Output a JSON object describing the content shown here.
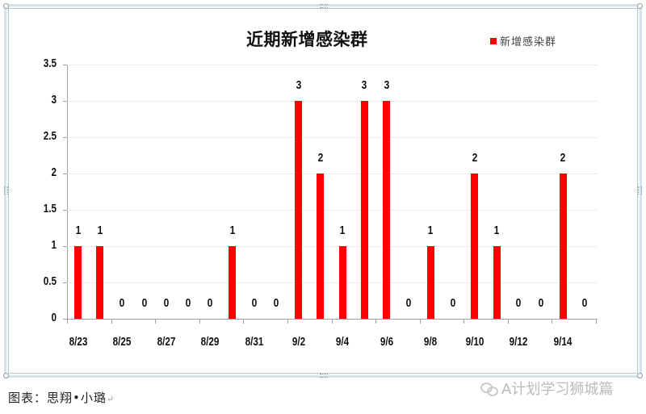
{
  "chart_data": {
    "type": "bar",
    "title": "近期新增感染群",
    "xlabel": "",
    "ylabel": "",
    "ylim": [
      0,
      3.5
    ],
    "yticks": [
      0,
      0.5,
      1,
      1.5,
      2,
      2.5,
      3,
      3.5
    ],
    "ytick_labels": [
      "0",
      "0.5",
      "1",
      "1.5",
      "2",
      "2.5",
      "3",
      "3.5"
    ],
    "grid": true,
    "legend_position": "top-right",
    "categories": [
      "8/23",
      "8/24",
      "8/25",
      "8/26",
      "8/27",
      "8/28",
      "8/29",
      "8/30",
      "8/31",
      "9/1",
      "9/2",
      "9/3",
      "9/4",
      "9/5",
      "9/6",
      "9/7",
      "9/8",
      "9/9",
      "9/10",
      "9/11",
      "9/12",
      "9/13",
      "9/14",
      "9/15"
    ],
    "xtick_labels": [
      "8/23",
      "8/25",
      "8/27",
      "8/29",
      "8/31",
      "9/2",
      "9/4",
      "9/6",
      "9/8",
      "9/10",
      "9/12",
      "9/14"
    ],
    "series": [
      {
        "name": "新增感染群",
        "color": "#ff0000",
        "values": [
          1,
          1,
          0,
          0,
          0,
          0,
          0,
          1,
          0,
          0,
          3,
          2,
          1,
          3,
          3,
          0,
          1,
          0,
          2,
          1,
          0,
          0,
          2,
          0
        ],
        "data_labels": true
      }
    ]
  },
  "caption": {
    "text": "图表：思翔•小璐",
    "mark": "↵"
  },
  "watermark": {
    "text": "A计划学习狮城篇",
    "icon": "wechat-icon"
  }
}
